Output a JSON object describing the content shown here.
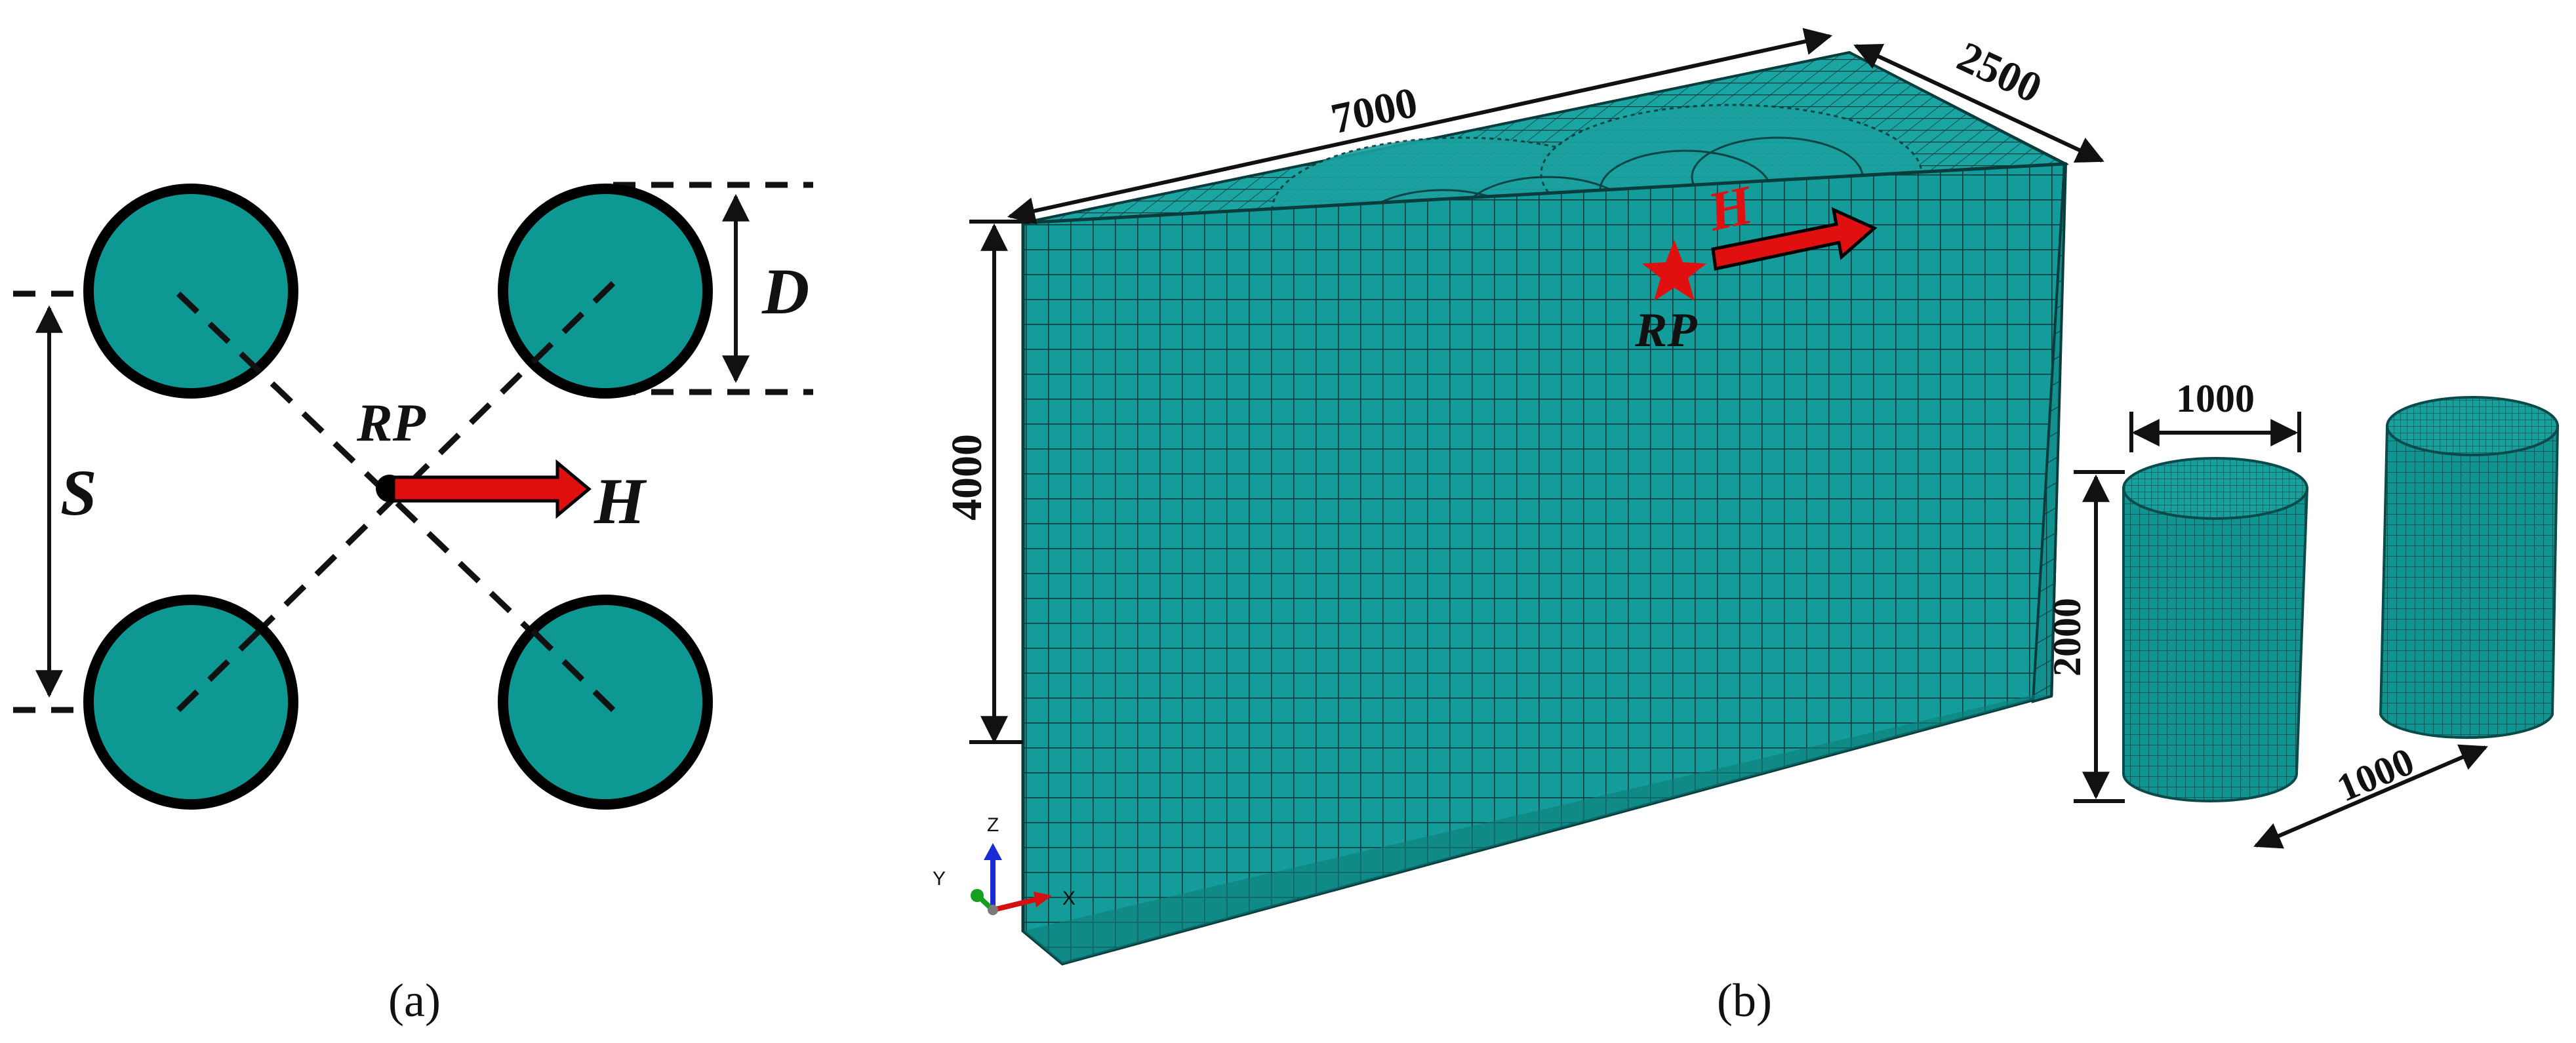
{
  "panel_a": {
    "caption": "(a)",
    "label_D": "D",
    "label_S": "S",
    "label_RP": "RP",
    "label_H": "H"
  },
  "panel_b": {
    "caption": "(b)",
    "dim_length": "7000",
    "dim_width": "2500",
    "dim_height": "4000",
    "label_H": "H",
    "label_RP": "RP",
    "pile_diameter": "1000",
    "pile_length": "2000",
    "pile_spacing": "1000",
    "axis_x": "X",
    "axis_y": "Y",
    "axis_z": "Z"
  },
  "colors": {
    "mesh_fill": "#149c9a",
    "mesh_line": "#0b3f40",
    "pile_fill": "#0f9591",
    "load_arrow": "#e01010"
  }
}
